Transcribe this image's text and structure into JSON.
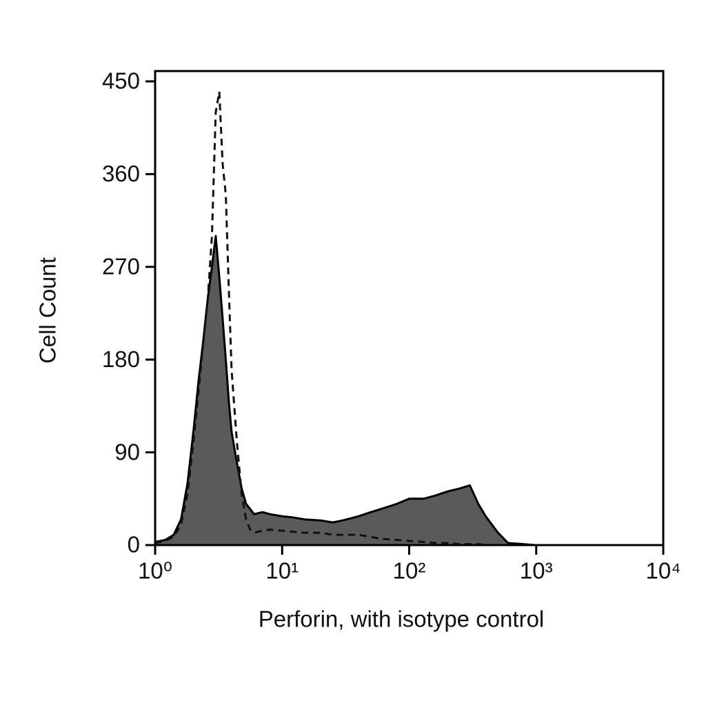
{
  "chart_data": {
    "type": "histogram-overlay",
    "xlabel": "Perforin, with isotype control",
    "ylabel": "Cell Count",
    "xscale": "log",
    "xlim": [
      1,
      10000
    ],
    "xticks": [
      {
        "value": 1,
        "label": "10⁰"
      },
      {
        "value": 10,
        "label": "10¹"
      },
      {
        "value": 100,
        "label": "10²"
      },
      {
        "value": 1000,
        "label": "10³"
      },
      {
        "value": 10000,
        "label": "10⁴"
      }
    ],
    "ylim": [
      0,
      460
    ],
    "yticks": [
      0,
      90,
      180,
      270,
      360,
      450
    ],
    "x": [
      1,
      1.2,
      1.4,
      1.6,
      1.8,
      2.0,
      2.2,
      2.4,
      2.6,
      2.8,
      3.0,
      3.2,
      3.4,
      3.6,
      3.8,
      4.0,
      4.4,
      4.8,
      5.2,
      5.6,
      6,
      7,
      8,
      10,
      12,
      15,
      20,
      25,
      30,
      40,
      50,
      60,
      80,
      100,
      130,
      160,
      200,
      250,
      300,
      350,
      400,
      500,
      600,
      1000,
      10000
    ],
    "series": [
      {
        "color": "#5a5a5a",
        "filled": true,
        "dashed": false,
        "values": [
          3,
          5,
          10,
          25,
          60,
          110,
          160,
          200,
          240,
          270,
          300,
          260,
          220,
          180,
          140,
          110,
          80,
          55,
          40,
          35,
          30,
          32,
          30,
          28,
          27,
          25,
          24,
          22,
          24,
          28,
          32,
          35,
          40,
          45,
          45,
          48,
          52,
          55,
          58,
          40,
          28,
          12,
          2,
          0,
          0
        ]
      },
      {
        "color": "#111111",
        "filled": false,
        "dashed": true,
        "values": [
          2,
          4,
          8,
          20,
          50,
          100,
          150,
          200,
          240,
          300,
          420,
          440,
          370,
          340,
          250,
          170,
          100,
          50,
          25,
          15,
          12,
          14,
          15,
          14,
          13,
          12,
          12,
          10,
          10,
          10,
          8,
          6,
          5,
          4,
          3,
          2,
          2,
          1,
          1,
          1,
          0,
          0,
          0,
          0,
          0
        ]
      }
    ]
  }
}
